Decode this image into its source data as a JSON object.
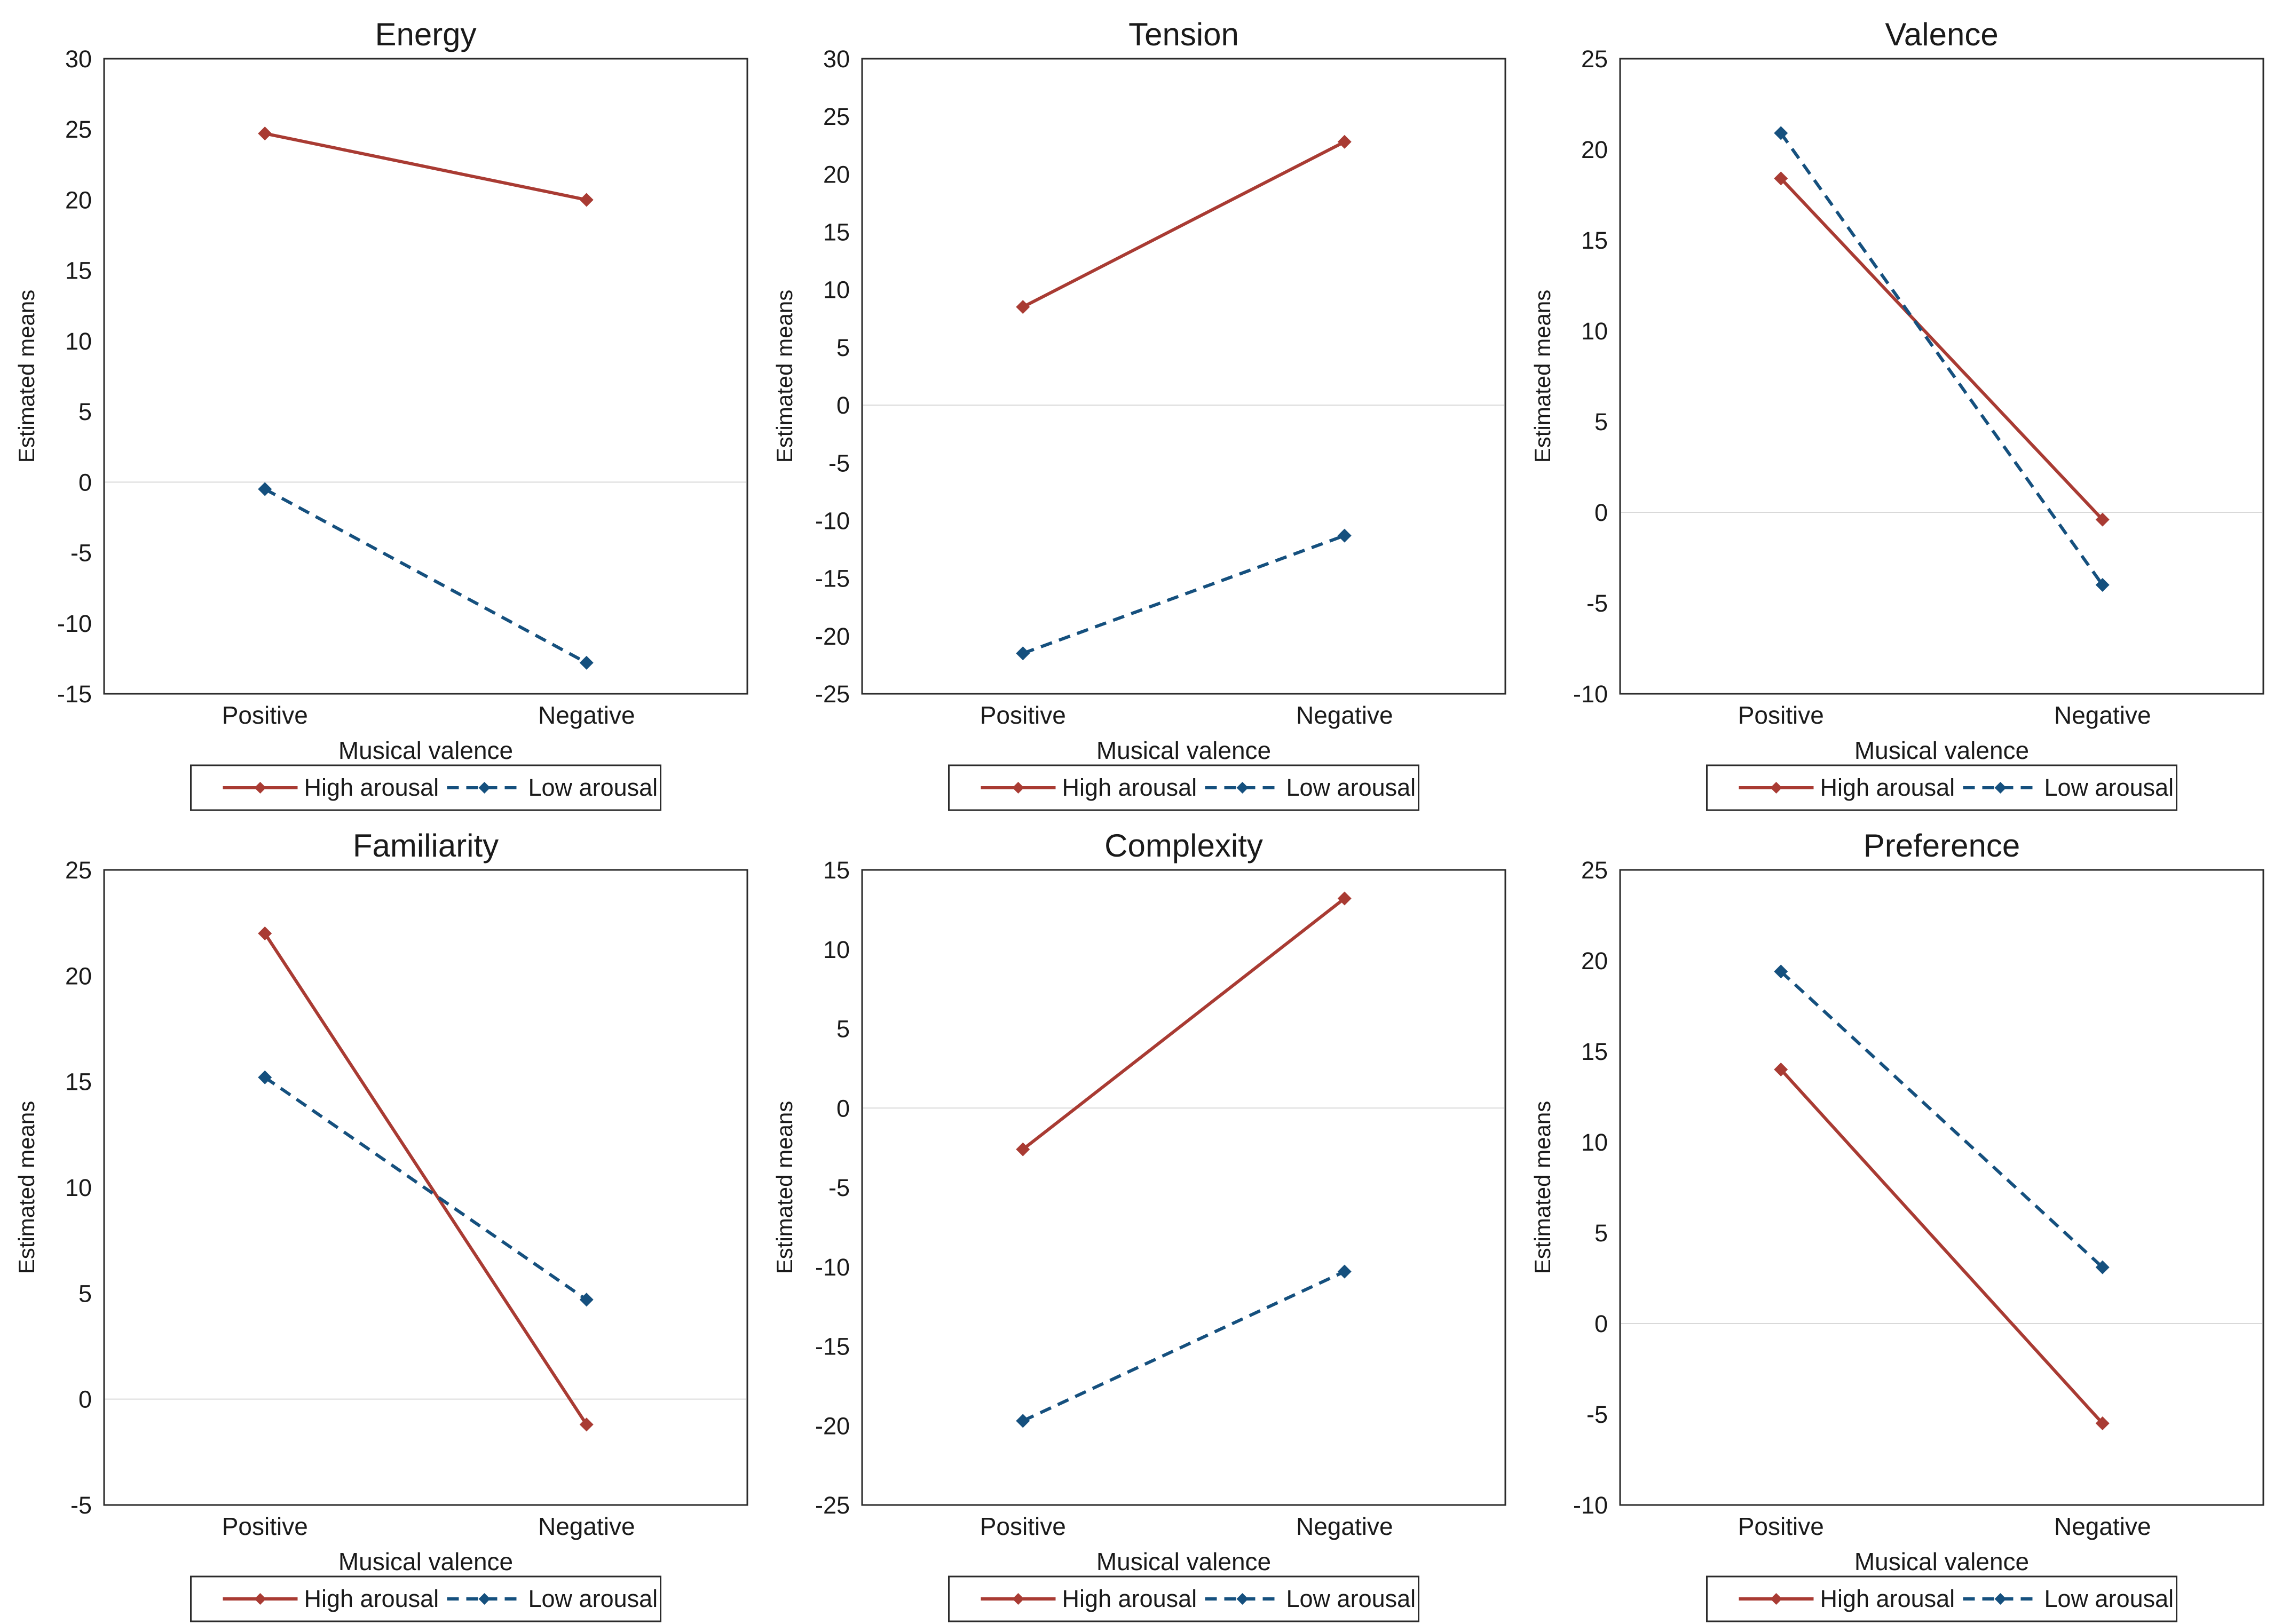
{
  "figure": {
    "layout": "2x3-grid",
    "background": "#FFFFFF"
  },
  "colors": {
    "high_arousal": "#A93B33",
    "low_arousal": "#15507E",
    "zero_line": "#D9D9D9",
    "axis_border": "#2B2B2B",
    "text": "#1A1A1A"
  },
  "chart_data": [
    {
      "type": "line",
      "title": "Energy",
      "xlabel": "Musical valence",
      "ylabel": "Estimated means",
      "categories": [
        "Positive",
        "Negative"
      ],
      "series": [
        {
          "name": "High arousal",
          "values": [
            24.7,
            20.0
          ],
          "color": "#A93B33",
          "line_style": "solid",
          "marker": "diamond"
        },
        {
          "name": "Low arousal",
          "values": [
            -0.5,
            -12.8
          ],
          "color": "#15507E",
          "line_style": "dashed",
          "marker": "diamond"
        }
      ],
      "ylim": [
        -15,
        30
      ],
      "ytick_step": 5,
      "yticks": [
        30,
        25,
        20,
        15,
        10,
        5,
        0,
        -5,
        -10,
        -15
      ],
      "zero_line": true,
      "grid": "none",
      "legend_position": "bottom"
    },
    {
      "type": "line",
      "title": "Tension",
      "xlabel": "Musical valence",
      "ylabel": "Estimated means",
      "categories": [
        "Positive",
        "Negative"
      ],
      "series": [
        {
          "name": "High arousal",
          "values": [
            8.5,
            22.8
          ],
          "color": "#A93B33",
          "line_style": "solid",
          "marker": "diamond"
        },
        {
          "name": "Low arousal",
          "values": [
            -21.5,
            -11.3
          ],
          "color": "#15507E",
          "line_style": "dashed",
          "marker": "diamond"
        }
      ],
      "ylim": [
        -25,
        30
      ],
      "ytick_step": 5,
      "yticks": [
        30,
        25,
        20,
        15,
        10,
        5,
        0,
        -5,
        -10,
        -15,
        -20,
        -25
      ],
      "zero_line": true,
      "grid": "none",
      "legend_position": "bottom"
    },
    {
      "type": "line",
      "title": "Valence",
      "xlabel": "Musical valence",
      "ylabel": "Estimated means",
      "categories": [
        "Positive",
        "Negative"
      ],
      "series": [
        {
          "name": "High arousal",
          "values": [
            18.4,
            -0.4
          ],
          "color": "#A93B33",
          "line_style": "solid",
          "marker": "diamond"
        },
        {
          "name": "Low arousal",
          "values": [
            20.9,
            -4.0
          ],
          "color": "#15507E",
          "line_style": "dashed",
          "marker": "diamond"
        }
      ],
      "ylim": [
        -10,
        25
      ],
      "ytick_step": 5,
      "yticks": [
        25,
        20,
        15,
        10,
        5,
        0,
        -5,
        -10
      ],
      "zero_line": true,
      "grid": "none",
      "legend_position": "bottom"
    },
    {
      "type": "line",
      "title": "Familiarity",
      "xlabel": "Musical valence",
      "ylabel": "Estimated means",
      "categories": [
        "Positive",
        "Negative"
      ],
      "series": [
        {
          "name": "High arousal",
          "values": [
            22.0,
            -1.2
          ],
          "color": "#A93B33",
          "line_style": "solid",
          "marker": "diamond"
        },
        {
          "name": "Low arousal",
          "values": [
            15.2,
            4.7
          ],
          "color": "#15507E",
          "line_style": "dashed",
          "marker": "diamond"
        }
      ],
      "ylim": [
        -5,
        25
      ],
      "ytick_step": 5,
      "yticks": [
        25,
        20,
        15,
        10,
        5,
        0,
        -5
      ],
      "zero_line": true,
      "grid": "none",
      "legend_position": "bottom"
    },
    {
      "type": "line",
      "title": "Complexity",
      "xlabel": "Musical valence",
      "ylabel": "Estimated means",
      "categories": [
        "Positive",
        "Negative"
      ],
      "series": [
        {
          "name": "High arousal",
          "values": [
            -2.6,
            13.2
          ],
          "color": "#A93B33",
          "line_style": "solid",
          "marker": "diamond"
        },
        {
          "name": "Low arousal",
          "values": [
            -19.7,
            -10.3
          ],
          "color": "#15507E",
          "line_style": "dashed",
          "marker": "diamond"
        }
      ],
      "ylim": [
        -25,
        15
      ],
      "ytick_step": 5,
      "yticks": [
        15,
        10,
        5,
        0,
        -5,
        -10,
        -15,
        -20,
        -25
      ],
      "zero_line": true,
      "grid": "none",
      "legend_position": "bottom"
    },
    {
      "type": "line",
      "title": "Preference",
      "xlabel": "Musical valence",
      "ylabel": "Estimated means",
      "categories": [
        "Positive",
        "Negative"
      ],
      "series": [
        {
          "name": "High arousal",
          "values": [
            14.0,
            -5.5
          ],
          "color": "#A93B33",
          "line_style": "solid",
          "marker": "diamond"
        },
        {
          "name": "Low arousal",
          "values": [
            19.4,
            3.1
          ],
          "color": "#15507E",
          "line_style": "dashed",
          "marker": "diamond"
        }
      ],
      "ylim": [
        -10,
        25
      ],
      "ytick_step": 5,
      "yticks": [
        25,
        20,
        15,
        10,
        5,
        0,
        -5,
        -10
      ],
      "zero_line": true,
      "grid": "none",
      "legend_position": "bottom"
    }
  ]
}
